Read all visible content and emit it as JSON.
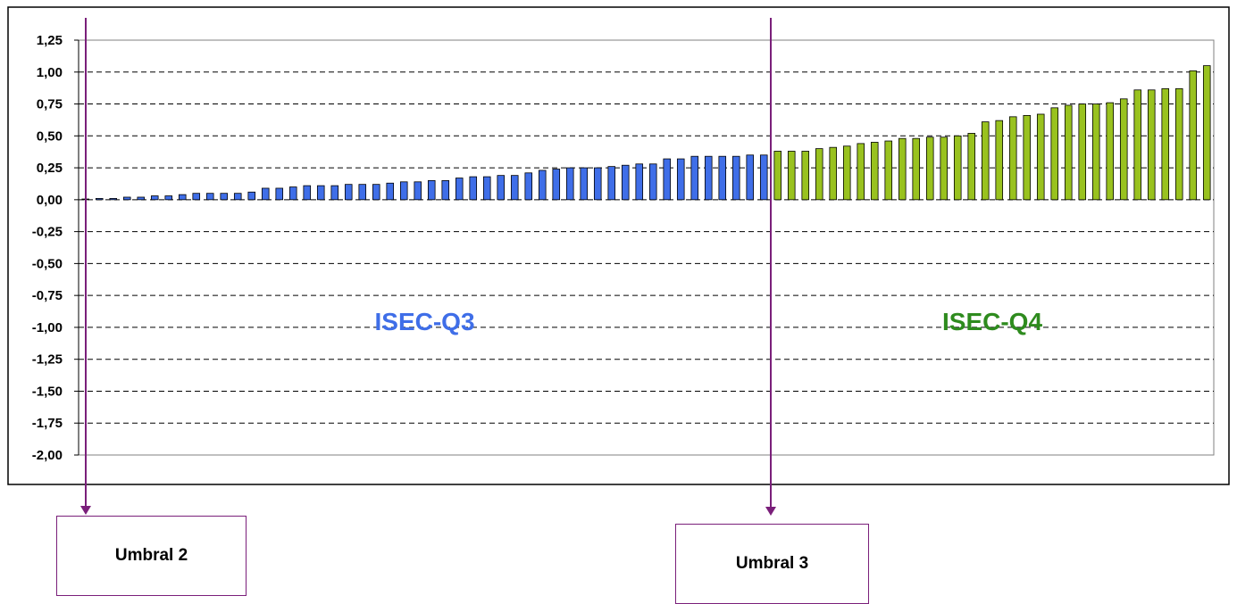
{
  "chart_data": {
    "type": "bar",
    "ylim": [
      -2.0,
      1.25
    ],
    "yticks": [
      1.25,
      1.0,
      0.75,
      0.5,
      0.25,
      0.0,
      -0.25,
      -0.5,
      -0.75,
      -1.0,
      -1.25,
      -1.5,
      -1.75,
      -2.0
    ],
    "ytick_labels": [
      "1,25",
      "1,00",
      "0,75",
      "0,50",
      "0,25",
      "0,00",
      "-0,25",
      "-0,50",
      "-0,75",
      "-1,00",
      "-1,25",
      "-1,50",
      "-1,75",
      "-2,00"
    ],
    "grid": "horizontal-dashed",
    "series": [
      {
        "color": "#3f6ee8",
        "values": [
          0.0,
          0.01,
          0.01,
          0.02,
          0.02,
          0.03,
          0.03,
          0.04,
          0.05,
          0.05,
          0.05,
          0.05,
          0.06,
          0.09,
          0.09,
          0.1,
          0.11,
          0.11,
          0.11,
          0.12,
          0.12,
          0.12,
          0.13,
          0.14,
          0.14,
          0.15,
          0.15,
          0.17,
          0.18,
          0.18,
          0.19,
          0.19,
          0.21,
          0.23,
          0.24,
          0.25,
          0.25,
          0.25,
          0.26,
          0.27,
          0.28,
          0.28,
          0.32,
          0.32,
          0.34,
          0.34,
          0.34,
          0.34,
          0.35,
          0.35
        ]
      },
      {
        "color": "#99c21f",
        "values": [
          0.38,
          0.38,
          0.38,
          0.4,
          0.41,
          0.42,
          0.44,
          0.45,
          0.46,
          0.48,
          0.48,
          0.49,
          0.49,
          0.5,
          0.52,
          0.61,
          0.62,
          0.65,
          0.66,
          0.67,
          0.72,
          0.74,
          0.75,
          0.75,
          0.76,
          0.79,
          0.86,
          0.86,
          0.87,
          0.87,
          1.01,
          1.05
        ]
      }
    ],
    "annotations": [
      {
        "text": "ISEC-Q3",
        "color": "#3f6ee8",
        "y": -0.95
      },
      {
        "text": "ISEC-Q4",
        "color": "#2e8b1e",
        "y": -0.95
      }
    ]
  },
  "thresholds": [
    {
      "label": "Umbral 2",
      "color": "#7a1f7a"
    },
    {
      "label": "Umbral 3",
      "color": "#7a1f7a"
    }
  ]
}
